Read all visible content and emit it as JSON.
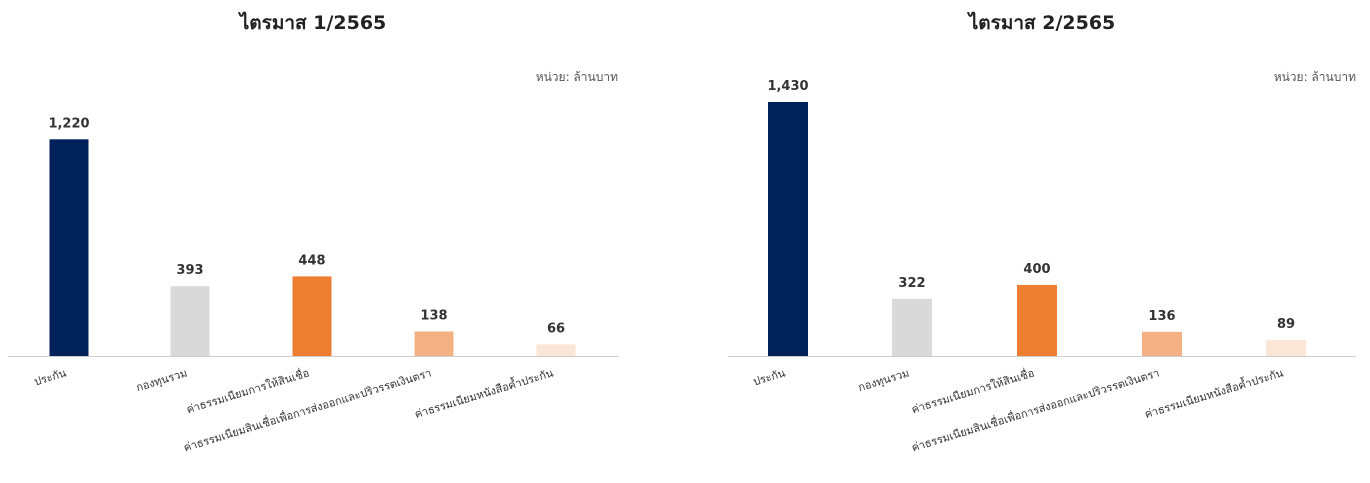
{
  "chart_data": [
    {
      "type": "bar",
      "title": "ไตรมาส 1/2565",
      "unit": "หน่วย: ล้านบาท",
      "categories": [
        "ประกัน",
        "กองทุนรวม",
        "ค่าธรรมเนียมการให้สินเชื่อ",
        "ค่าธรรมเนียมสินเชื่อเพื่อการส่งออกและปริวรรตเงินตรา",
        "ค่าธรรมเนียมหนังสือค้ำประกัน"
      ],
      "values": [
        1220,
        393,
        448,
        138,
        66
      ],
      "value_labels": [
        "1,220",
        "393",
        "448",
        "138",
        "66"
      ],
      "colors": [
        "#00215a",
        "#d9d9d9",
        "#ed7d31",
        "#f4b183",
        "#fbe5d6"
      ],
      "ylim": [
        0,
        1500
      ]
    },
    {
      "type": "bar",
      "title": "ไตรมาส 2/2565",
      "unit": "หน่วย: ล้านบาท",
      "categories": [
        "ประกัน",
        "กองทุนรวม",
        "ค่าธรรมเนียมการให้สินเชื่อ",
        "ค่าธรรมเนียมสินเชื่อเพื่อการส่งออกและปริวรรตเงินตรา",
        "ค่าธรรมเนียมหนังสือค้ำประกัน"
      ],
      "values": [
        1430,
        322,
        400,
        136,
        89
      ],
      "value_labels": [
        "1,430",
        "322",
        "400",
        "136",
        "89"
      ],
      "colors": [
        "#00215a",
        "#d9d9d9",
        "#ed7d31",
        "#f4b183",
        "#fbe5d6"
      ],
      "ylim": [
        0,
        1500
      ]
    }
  ]
}
